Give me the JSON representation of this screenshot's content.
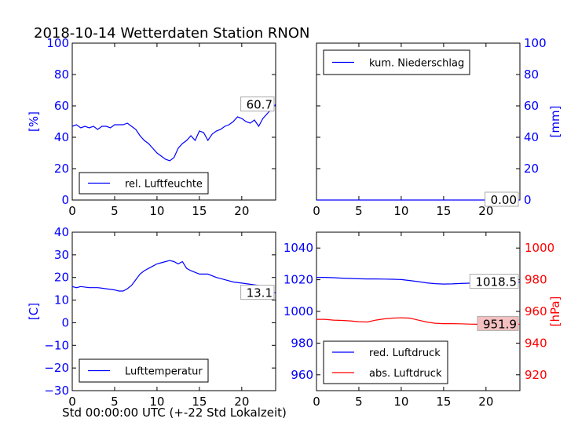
{
  "title": "2018-10-14 Wetterdaten Station RNON",
  "xlabel": "Std 00:00:00 UTC (+-22 Std Lokalzeit)",
  "colors": {
    "blue": "#0000ff",
    "red": "#ff0000",
    "black": "#000000",
    "pink": "#f4c0c0"
  },
  "chart_data": [
    {
      "id": "humidity",
      "type": "line",
      "ylabel": "[%]",
      "ylabel_color": "#0000ff",
      "ylabel_side": "left",
      "xlim": [
        0,
        24
      ],
      "ylim": [
        0,
        100
      ],
      "xticks": [
        0,
        5,
        10,
        15,
        20
      ],
      "yticks": [
        0,
        20,
        40,
        60,
        80,
        100
      ],
      "ytick_color": "#0000ff",
      "ytick_side": "left",
      "legend_placement": "lower-left",
      "series": [
        {
          "name": "rel. Luftfeuchte",
          "color": "#0000ff",
          "x": [
            0,
            0.5,
            1,
            1.5,
            2,
            2.5,
            3,
            3.5,
            4,
            4.5,
            5,
            5.5,
            6,
            6.5,
            7,
            7.5,
            8,
            8.5,
            9,
            9.5,
            10,
            10.5,
            11,
            11.5,
            12,
            12.5,
            13,
            13.5,
            14,
            14.5,
            15,
            15.5,
            16,
            16.5,
            17,
            17.5,
            18,
            18.5,
            19,
            19.5,
            20,
            20.5,
            21,
            21.5,
            22,
            22.5,
            23,
            23.5,
            24
          ],
          "y": [
            47,
            48,
            46,
            47,
            46,
            47,
            45,
            47,
            47,
            46,
            48,
            48,
            48,
            49,
            47,
            45,
            41,
            38,
            36,
            33,
            30,
            28,
            26,
            25,
            27,
            33,
            36,
            38,
            41,
            38,
            44,
            43,
            38,
            42,
            44,
            45,
            47,
            48,
            50,
            53,
            52,
            50,
            49,
            51,
            47,
            52,
            55,
            58,
            61
          ]
        }
      ],
      "annotation": {
        "text": "60.7",
        "x": 24,
        "y": 60.7,
        "box_color": "#ffffff"
      }
    },
    {
      "id": "precipitation",
      "type": "line",
      "ylabel": "[mm]",
      "ylabel_color": "#0000ff",
      "ylabel_side": "right",
      "xlim": [
        0,
        24
      ],
      "ylim": [
        0,
        100
      ],
      "xticks": [
        0,
        5,
        10,
        15,
        20
      ],
      "yticks": [
        0,
        20,
        40,
        60,
        80,
        100
      ],
      "ytick_color": "#0000ff",
      "ytick_side": "right",
      "legend_placement": "upper-left",
      "series": [
        {
          "name": "kum. Niederschlag",
          "color": "#0000ff",
          "x": [
            0,
            24
          ],
          "y": [
            0,
            0
          ]
        }
      ],
      "annotation": {
        "text": "0.00",
        "x": 24,
        "y": 0,
        "box_color": "#ffffff"
      }
    },
    {
      "id": "temperature",
      "type": "line",
      "ylabel": "[C]",
      "ylabel_color": "#0000ff",
      "ylabel_side": "left",
      "xlim": [
        0,
        24
      ],
      "ylim": [
        -30,
        40
      ],
      "xticks": [
        0,
        5,
        10,
        15,
        20
      ],
      "yticks": [
        -30,
        -20,
        -10,
        0,
        10,
        20,
        30,
        40
      ],
      "ytick_color": "#0000ff",
      "ytick_side": "left",
      "legend_placement": "lower-left",
      "series": [
        {
          "name": "Lufttemperatur",
          "color": "#0000ff",
          "x": [
            0,
            0.5,
            1,
            2,
            3,
            4,
            5,
            5.5,
            6,
            6.5,
            7,
            7.5,
            8,
            8.5,
            9,
            9.5,
            10,
            10.5,
            11,
            11.5,
            12,
            12.5,
            13,
            13.5,
            14,
            15,
            16,
            17,
            18,
            19,
            20,
            21,
            22,
            23,
            24
          ],
          "y": [
            16,
            15.5,
            16,
            15.5,
            15.5,
            15,
            14.5,
            14,
            14,
            15,
            16.5,
            19,
            21.5,
            23,
            24,
            25,
            26,
            26.5,
            27,
            27.5,
            27,
            26,
            27,
            24,
            23,
            21.5,
            21.5,
            20,
            19,
            18,
            17.5,
            17,
            16.5,
            15,
            13.1
          ]
        }
      ],
      "annotation": {
        "text": "13.1",
        "x": 24,
        "y": 13.1,
        "box_color": "#ffffff"
      }
    },
    {
      "id": "pressure",
      "type": "line",
      "ylabel": "[hPa]",
      "ylabel_color": "#ff0000",
      "ylabel_side": "right",
      "xlim": [
        0,
        24
      ],
      "ylim": [
        950,
        1050
      ],
      "ylim_right": [
        910,
        1010
      ],
      "xticks": [
        0,
        5,
        10,
        15,
        20
      ],
      "yticks": [
        960,
        980,
        1000,
        1020,
        1040
      ],
      "ytick_color": "#0000ff",
      "ytick_side": "left",
      "yticks_right": [
        920,
        940,
        960,
        980,
        1000
      ],
      "ytick_right_color": "#ff0000",
      "legend_placement": "lower-left",
      "series": [
        {
          "name": "red. Luftdruck",
          "color": "#0000ff",
          "axis": "left",
          "x": [
            0,
            1,
            2,
            3,
            4,
            5,
            6,
            7,
            8,
            9,
            10,
            11,
            12,
            13,
            14,
            15,
            16,
            17,
            18,
            19,
            20,
            21,
            22,
            23,
            24
          ],
          "y": [
            1021.5,
            1021.5,
            1021.3,
            1021,
            1020.8,
            1020.6,
            1020.5,
            1020.5,
            1020.4,
            1020.3,
            1020.1,
            1019.5,
            1018.8,
            1018,
            1017.5,
            1017.3,
            1017.4,
            1017.6,
            1017.8,
            1018,
            1018.1,
            1018.3,
            1018.4,
            1018.5,
            1018.5
          ]
        },
        {
          "name": "abs. Luftdruck",
          "color": "#ff0000",
          "axis": "right",
          "x": [
            0,
            1,
            2,
            3,
            4,
            5,
            6,
            7,
            8,
            9,
            10,
            11,
            12,
            13,
            14,
            15,
            16,
            17,
            18,
            19,
            20,
            21,
            22,
            23,
            24
          ],
          "y": [
            955,
            955,
            954.5,
            954.3,
            954,
            953.5,
            953.3,
            954.5,
            955.3,
            955.8,
            956,
            955.8,
            954.5,
            953.3,
            952.5,
            952.3,
            952.3,
            952.2,
            952,
            951.9,
            951.9,
            951.9,
            951.9,
            951.9,
            951.9
          ]
        }
      ],
      "annotations": [
        {
          "text": "1018.5",
          "x": 24,
          "y": 1018.5,
          "axis": "left",
          "box_color": "#ffffff"
        },
        {
          "text": "951.9",
          "x": 24,
          "y": 951.9,
          "axis": "right",
          "box_color": "#f4c0c0"
        }
      ]
    }
  ]
}
